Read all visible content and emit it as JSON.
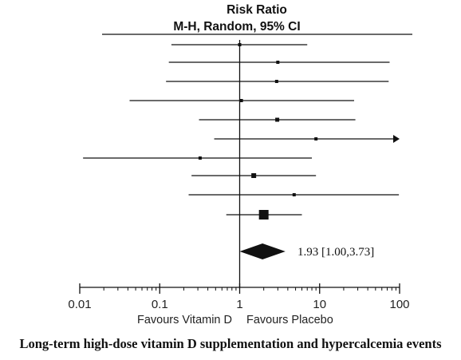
{
  "chart_data": {
    "type": "forest",
    "title": "Risk Ratio",
    "subtitle": "M-H, Random, 95% CI",
    "x_scale": "log",
    "xlim": [
      0.01,
      100
    ],
    "tick_labels": [
      "0.01",
      "0.1",
      "1",
      "10",
      "100"
    ],
    "tick_values": [
      0.01,
      0.1,
      1,
      10,
      100
    ],
    "null_line": 1,
    "left_label": "Favours Vitamin D",
    "right_label": "Favours Placebo",
    "studies": [
      {
        "rr": 1.0,
        "lo": 0.14,
        "hi": 7.0
      },
      {
        "rr": 3.0,
        "lo": 0.13,
        "hi": 75.0
      },
      {
        "rr": 2.9,
        "lo": 0.12,
        "hi": 73.0
      },
      {
        "rr": 1.05,
        "lo": 0.042,
        "hi": 27.0
      },
      {
        "rr": 2.95,
        "lo": 0.31,
        "hi": 28.0
      },
      {
        "rr": 9.0,
        "lo": 0.48,
        "hi": 100,
        "arrow_right": true
      },
      {
        "rr": 0.32,
        "lo": 0.011,
        "hi": 8.0
      },
      {
        "rr": 1.5,
        "lo": 0.25,
        "hi": 9.0
      },
      {
        "rr": 4.8,
        "lo": 0.23,
        "hi": 98.0
      },
      {
        "rr": 2.0,
        "lo": 0.68,
        "hi": 6.0
      }
    ],
    "pooled": {
      "rr": 1.93,
      "lo": 1.0,
      "hi": 3.73,
      "label": "1.93 [1.00,3.73]"
    }
  },
  "caption": "Long-term high-dose vitamin D supplementation and hypercalcemia events"
}
